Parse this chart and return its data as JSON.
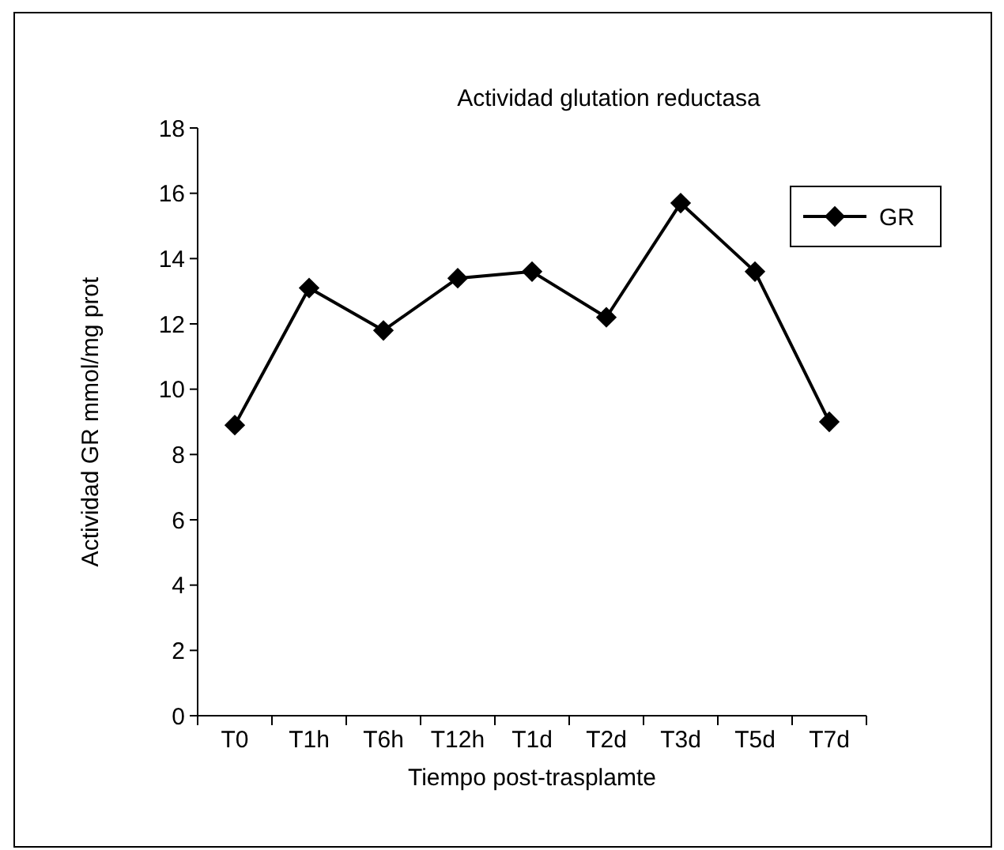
{
  "chart_data": {
    "type": "line",
    "title": "Actividad glutation reductasa",
    "xlabel": "Tiempo post-trasplamte",
    "ylabel": "Actividad GR mmol/mg prot",
    "categories": [
      "T0",
      "T1h",
      "T6h",
      "T12h",
      "T1d",
      "T2d",
      "T3d",
      "T5d",
      "T7d"
    ],
    "series": [
      {
        "name": "GR",
        "color": "#000000",
        "values": [
          8.9,
          13.1,
          11.8,
          13.4,
          13.6,
          12.2,
          15.7,
          13.6,
          9.0
        ]
      }
    ],
    "ylim": [
      0,
      18
    ],
    "yticks": [
      0,
      2,
      4,
      6,
      8,
      10,
      12,
      14,
      16,
      18
    ],
    "grid": false,
    "legend": "top right",
    "marker": "diamond",
    "line_style": "solid"
  }
}
